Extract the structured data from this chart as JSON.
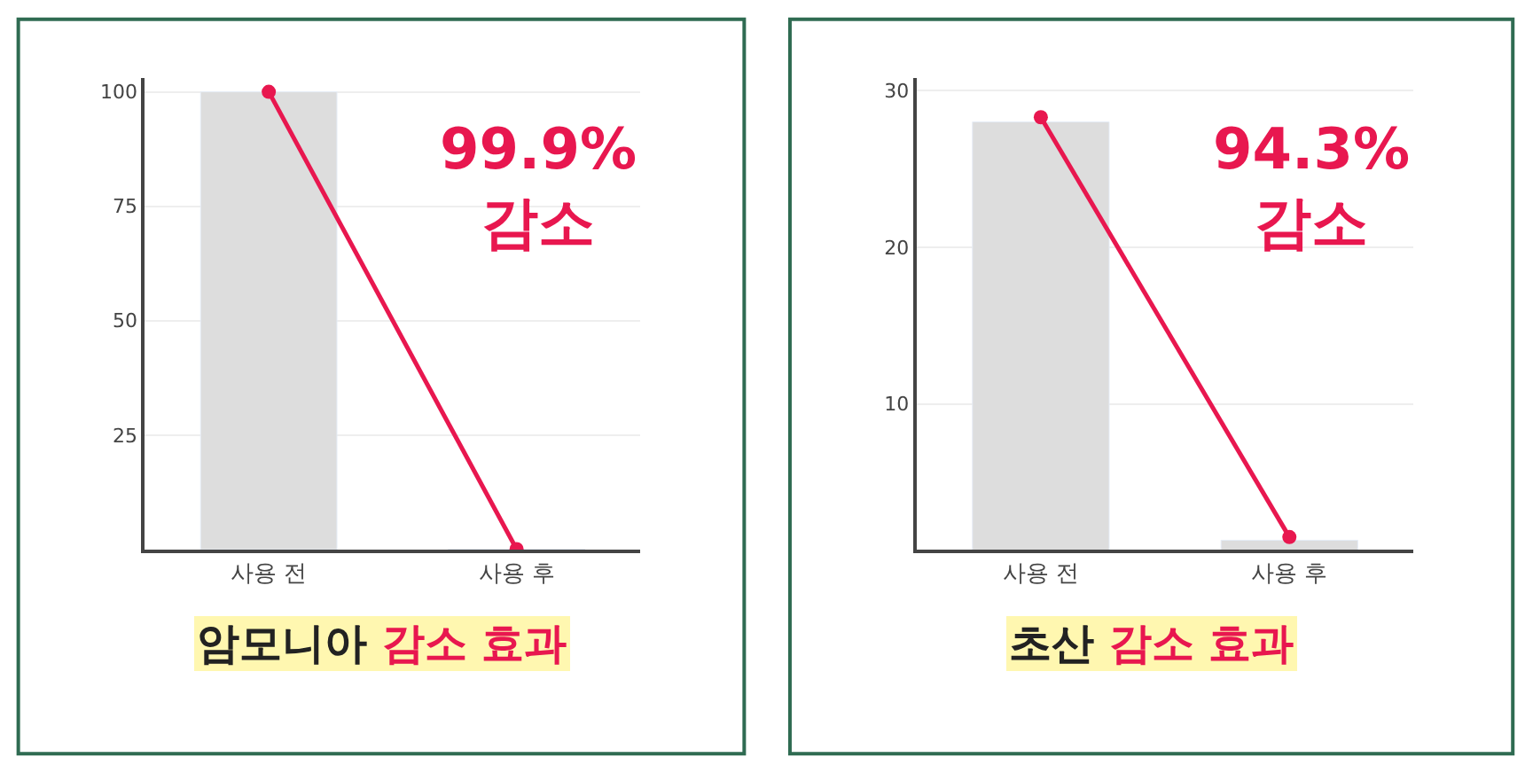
{
  "chart_data": [
    {
      "type": "bar",
      "title": "암모니아 감소 효과",
      "categories": [
        "사용 전",
        "사용 후"
      ],
      "series": [
        {
          "color": "#dddddd",
          "values": [
            100,
            0.1
          ]
        },
        {
          "type": "line",
          "color": "#e8174f",
          "values": [
            100,
            0.1
          ],
          "marker": "circle",
          "line_style": "solid"
        }
      ],
      "ylim": [
        0,
        103
      ],
      "yticks": [
        25,
        50,
        75,
        100
      ],
      "grid": "y",
      "annotations": [
        "99.9% 감소"
      ]
    },
    {
      "type": "bar",
      "title": "초산 감소 효과",
      "categories": [
        "사용 전",
        "사용 후"
      ],
      "series": [
        {
          "color": "#dddddd",
          "values": [
            28,
            1.3
          ]
        },
        {
          "type": "line",
          "color": "#e8174f",
          "values": [
            28.3,
            1.5
          ],
          "marker": "circle",
          "line_style": "solid"
        }
      ],
      "ylim": [
        0.7,
        30.8
      ],
      "yticks": [
        10,
        20,
        30
      ],
      "grid": "y",
      "annotations": [
        "94.3% 감소"
      ]
    }
  ]
}
